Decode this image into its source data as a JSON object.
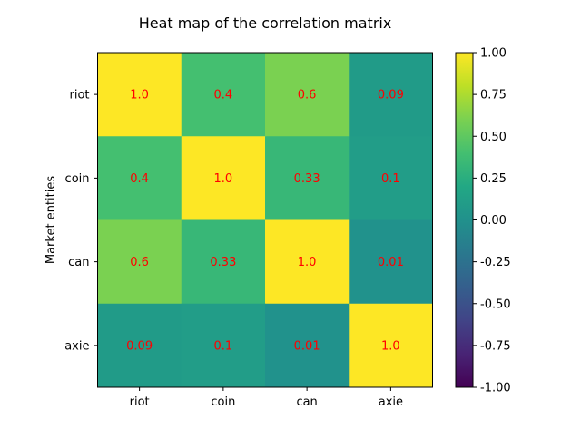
{
  "chart_data": {
    "type": "heatmap",
    "title": "Heat map of the correlation matrix",
    "xlabel": "",
    "ylabel": "Market entities",
    "x_categories": [
      "riot",
      "coin",
      "can",
      "axie"
    ],
    "y_categories": [
      "riot",
      "coin",
      "can",
      "axie"
    ],
    "values": [
      [
        1.0,
        0.4,
        0.6,
        0.09
      ],
      [
        0.4,
        1.0,
        0.33,
        0.1
      ],
      [
        0.6,
        0.33,
        1.0,
        0.01
      ],
      [
        0.09,
        0.1,
        0.01,
        1.0
      ]
    ],
    "cell_labels": [
      [
        "1.0",
        "0.4",
        "0.6",
        "0.09"
      ],
      [
        "0.4",
        "1.0",
        "0.33",
        "0.1"
      ],
      [
        "0.6",
        "0.33",
        "1.0",
        "0.01"
      ],
      [
        "0.09",
        "0.1",
        "0.01",
        "1.0"
      ]
    ],
    "annotation_color": "#ff0000",
    "colormap": "viridis",
    "vmin": -1.0,
    "vmax": 1.0,
    "colorbar_ticks": [
      1.0,
      0.75,
      0.5,
      0.25,
      0.0,
      -0.25,
      -0.5,
      -0.75,
      -1.0
    ],
    "colorbar_tick_labels": [
      "1.00",
      "0.75",
      "0.50",
      "0.25",
      "0.00",
      "-0.25",
      "-0.50",
      "-0.75",
      "-1.00"
    ],
    "grid": false,
    "colorbar": "right"
  }
}
